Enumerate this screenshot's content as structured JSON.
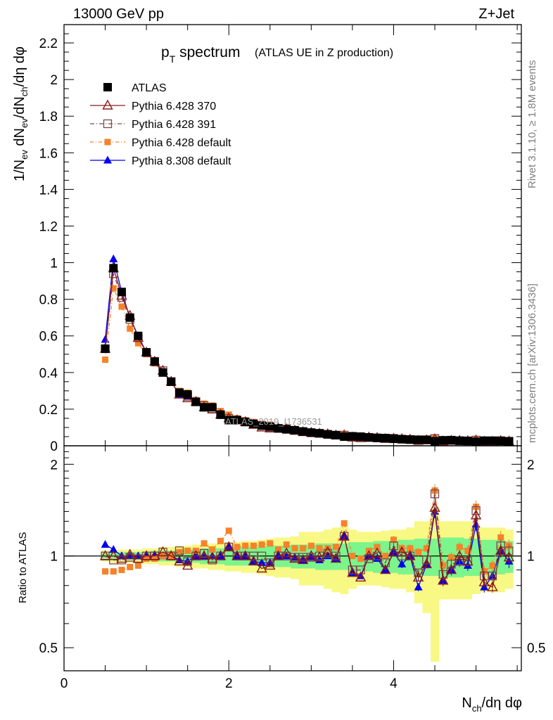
{
  "header": {
    "left": "13000 GeV pp",
    "right": "Z+Jet"
  },
  "title": {
    "main": "p",
    "sub": "T",
    "rest": " spectrum",
    "paren": "(ATLAS UE in Z production)"
  },
  "side_labels": {
    "rivet": "Rivet 3.1.10, ≥ 1.8M events",
    "mcplots": "mcplots.cern.ch [arXiv:1306.3436]"
  },
  "watermark": "ATLAS_2019_I1736531",
  "colors": {
    "atlas": "#000000",
    "p370": "#8b1a1a",
    "p391": "#7a4a4a",
    "p6def": "#f5822a",
    "p8def": "#0000ee",
    "band_inner": "#7cf58c",
    "band_outer": "#f8f884"
  },
  "chart_data": [
    {
      "type": "scatter",
      "panel": "main",
      "ylabel": "1/N_ev dN_ev/dN_ch/dη dφ",
      "ylim": [
        0,
        2.3
      ],
      "xlim": [
        0,
        5.55
      ],
      "yticks": [
        "0",
        "0.2",
        "0.4",
        "0.6",
        "0.8",
        "1",
        "1.2",
        "1.4",
        "1.6",
        "1.8",
        "2",
        "2.2"
      ],
      "legend": [
        "ATLAS",
        "Pythia 6.428 370",
        "Pythia 6.428 391",
        "Pythia 6.428 default",
        "Pythia 8.308 default"
      ],
      "legend_position": "top-left",
      "x": [
        0.5,
        0.6,
        0.7,
        0.8,
        0.9,
        1.0,
        1.1,
        1.2,
        1.3,
        1.4,
        1.5,
        1.6,
        1.7,
        1.8,
        1.9,
        2.0,
        2.1,
        2.2,
        2.3,
        2.4,
        2.5,
        2.6,
        2.7,
        2.8,
        2.9,
        3.0,
        3.1,
        3.2,
        3.3,
        3.4,
        3.5,
        3.6,
        3.7,
        3.8,
        3.9,
        4.0,
        4.1,
        4.2,
        4.3,
        4.4,
        4.5,
        4.6,
        4.7,
        4.8,
        4.9,
        5.0,
        5.1,
        5.2,
        5.3,
        5.4
      ],
      "series": [
        {
          "name": "ATLAS",
          "values": [
            0.53,
            0.97,
            0.84,
            0.7,
            0.6,
            0.51,
            0.46,
            0.4,
            0.35,
            0.29,
            0.28,
            0.24,
            0.21,
            0.21,
            0.17,
            0.14,
            0.14,
            0.13,
            0.12,
            0.11,
            0.105,
            0.095,
            0.09,
            0.085,
            0.078,
            0.072,
            0.068,
            0.062,
            0.058,
            0.05,
            0.052,
            0.05,
            0.046,
            0.043,
            0.042,
            0.038,
            0.036,
            0.034,
            0.033,
            0.033,
            0.025,
            0.03,
            0.031,
            0.028,
            0.027,
            0.022,
            0.028,
            0.028,
            0.026,
            0.024
          ]
        },
        {
          "name": "Pythia 6.428 370",
          "values": [
            0.53,
            0.97,
            0.82,
            0.71,
            0.59,
            0.51,
            0.46,
            0.41,
            0.35,
            0.28,
            0.26,
            0.24,
            0.21,
            0.2,
            0.17,
            0.15,
            0.14,
            0.13,
            0.115,
            0.1,
            0.095,
            0.095,
            0.092,
            0.083,
            0.075,
            0.072,
            0.067,
            0.064,
            0.057,
            0.058,
            0.046,
            0.042,
            0.046,
            0.044,
            0.038,
            0.039,
            0.037,
            0.034,
            0.028,
            0.031,
            0.036,
            0.025,
            0.028,
            0.028,
            0.026,
            0.03,
            0.023,
            0.022,
            0.027,
            0.024
          ]
        },
        {
          "name": "Pythia 6.428 391",
          "values": [
            0.53,
            0.94,
            0.81,
            0.69,
            0.59,
            0.51,
            0.46,
            0.41,
            0.35,
            0.29,
            0.27,
            0.24,
            0.22,
            0.2,
            0.17,
            0.15,
            0.14,
            0.13,
            0.12,
            0.11,
            0.1,
            0.095,
            0.09,
            0.084,
            0.077,
            0.071,
            0.068,
            0.063,
            0.058,
            0.058,
            0.047,
            0.045,
            0.045,
            0.043,
            0.04,
            0.041,
            0.036,
            0.034,
            0.029,
            0.032,
            0.04,
            0.026,
            0.029,
            0.027,
            0.026,
            0.031,
            0.024,
            0.024,
            0.028,
            0.025
          ]
        },
        {
          "name": "Pythia 6.428 default",
          "values": [
            0.47,
            0.86,
            0.76,
            0.64,
            0.56,
            0.5,
            0.45,
            0.4,
            0.35,
            0.3,
            0.29,
            0.25,
            0.23,
            0.22,
            0.19,
            0.17,
            0.15,
            0.14,
            0.13,
            0.12,
            0.115,
            0.1,
            0.098,
            0.09,
            0.083,
            0.078,
            0.072,
            0.066,
            0.062,
            0.064,
            0.052,
            0.049,
            0.048,
            0.046,
            0.042,
            0.043,
            0.038,
            0.036,
            0.034,
            0.035,
            0.041,
            0.028,
            0.031,
            0.03,
            0.028,
            0.032,
            0.025,
            0.026,
            0.03,
            0.026
          ]
        },
        {
          "name": "Pythia 8.308 default",
          "values": [
            0.58,
            1.02,
            0.84,
            0.7,
            0.6,
            0.51,
            0.46,
            0.4,
            0.35,
            0.28,
            0.27,
            0.24,
            0.21,
            0.21,
            0.17,
            0.15,
            0.14,
            0.13,
            0.115,
            0.105,
            0.1,
            0.095,
            0.09,
            0.084,
            0.076,
            0.071,
            0.066,
            0.062,
            0.057,
            0.058,
            0.046,
            0.043,
            0.046,
            0.042,
            0.038,
            0.039,
            0.034,
            0.034,
            0.026,
            0.031,
            0.035,
            0.025,
            0.028,
            0.027,
            0.025,
            0.028,
            0.022,
            0.024,
            0.027,
            0.023
          ]
        }
      ]
    },
    {
      "type": "scatter",
      "panel": "ratio",
      "ylabel": "Ratio to ATLAS",
      "xlabel": "N_ch/dη dφ",
      "ylim": [
        0.42,
        2.3
      ],
      "yscale": "log",
      "xlim": [
        0,
        5.55
      ],
      "yticks": [
        "0.5",
        "1",
        "2"
      ],
      "xticks": [
        "0",
        "2",
        "4"
      ],
      "x": [
        0.5,
        0.6,
        0.7,
        0.8,
        0.9,
        1.0,
        1.1,
        1.2,
        1.3,
        1.4,
        1.5,
        1.6,
        1.7,
        1.8,
        1.9,
        2.0,
        2.1,
        2.2,
        2.3,
        2.4,
        2.5,
        2.6,
        2.7,
        2.8,
        2.9,
        3.0,
        3.1,
        3.2,
        3.3,
        3.4,
        3.5,
        3.6,
        3.7,
        3.8,
        3.9,
        4.0,
        4.1,
        4.2,
        4.3,
        4.4,
        4.5,
        4.6,
        4.7,
        4.8,
        4.9,
        5.0,
        5.1,
        5.2,
        5.3,
        5.4
      ],
      "band_inner": [
        [
          0.98,
          1.02
        ],
        [
          0.97,
          1.03
        ],
        [
          0.97,
          1.03
        ],
        [
          0.97,
          1.03
        ],
        [
          0.97,
          1.03
        ],
        [
          0.97,
          1.03
        ],
        [
          0.96,
          1.04
        ],
        [
          0.96,
          1.04
        ],
        [
          0.96,
          1.04
        ],
        [
          0.95,
          1.05
        ],
        [
          0.95,
          1.05
        ],
        [
          0.95,
          1.05
        ],
        [
          0.94,
          1.06
        ],
        [
          0.94,
          1.06
        ],
        [
          0.94,
          1.06
        ],
        [
          0.93,
          1.07
        ],
        [
          0.93,
          1.07
        ],
        [
          0.93,
          1.07
        ],
        [
          0.93,
          1.07
        ],
        [
          0.92,
          1.08
        ],
        [
          0.92,
          1.08
        ],
        [
          0.92,
          1.08
        ],
        [
          0.92,
          1.08
        ],
        [
          0.91,
          1.09
        ],
        [
          0.91,
          1.09
        ],
        [
          0.91,
          1.09
        ],
        [
          0.9,
          1.1
        ],
        [
          0.9,
          1.1
        ],
        [
          0.9,
          1.1
        ],
        [
          0.9,
          1.1
        ],
        [
          0.89,
          1.11
        ],
        [
          0.89,
          1.11
        ],
        [
          0.89,
          1.11
        ],
        [
          0.88,
          1.12
        ],
        [
          0.88,
          1.12
        ],
        [
          0.88,
          1.12
        ],
        [
          0.87,
          1.13
        ],
        [
          0.87,
          1.13
        ],
        [
          0.86,
          1.14
        ],
        [
          0.86,
          1.14
        ],
        [
          0.86,
          1.14
        ],
        [
          0.85,
          1.15
        ],
        [
          0.85,
          1.15
        ],
        [
          0.85,
          1.15
        ],
        [
          0.86,
          1.14
        ],
        [
          0.86,
          1.14
        ],
        [
          0.87,
          1.13
        ],
        [
          0.87,
          1.13
        ],
        [
          0.87,
          1.13
        ],
        [
          0.88,
          1.12
        ]
      ],
      "band_outer": [
        [
          0.96,
          1.04
        ],
        [
          0.95,
          1.05
        ],
        [
          0.95,
          1.05
        ],
        [
          0.95,
          1.05
        ],
        [
          0.95,
          1.05
        ],
        [
          0.94,
          1.06
        ],
        [
          0.94,
          1.06
        ],
        [
          0.93,
          1.07
        ],
        [
          0.93,
          1.07
        ],
        [
          0.92,
          1.08
        ],
        [
          0.92,
          1.08
        ],
        [
          0.91,
          1.09
        ],
        [
          0.91,
          1.09
        ],
        [
          0.9,
          1.1
        ],
        [
          0.9,
          1.1
        ],
        [
          0.89,
          1.11
        ],
        [
          0.89,
          1.11
        ],
        [
          0.88,
          1.12
        ],
        [
          0.88,
          1.12
        ],
        [
          0.87,
          1.13
        ],
        [
          0.86,
          1.14
        ],
        [
          0.85,
          1.15
        ],
        [
          0.85,
          1.15
        ],
        [
          0.84,
          1.16
        ],
        [
          0.8,
          1.2
        ],
        [
          0.8,
          1.2
        ],
        [
          0.8,
          1.2
        ],
        [
          0.78,
          1.22
        ],
        [
          0.76,
          1.24
        ],
        [
          0.75,
          1.25
        ],
        [
          0.78,
          1.22
        ],
        [
          0.8,
          1.2
        ],
        [
          0.8,
          1.2
        ],
        [
          0.8,
          1.2
        ],
        [
          0.79,
          1.21
        ],
        [
          0.78,
          1.22
        ],
        [
          0.78,
          1.22
        ],
        [
          0.76,
          1.24
        ],
        [
          0.7,
          1.3
        ],
        [
          0.65,
          1.3
        ],
        [
          0.45,
          1.45
        ],
        [
          0.72,
          1.3
        ],
        [
          0.72,
          1.3
        ],
        [
          0.72,
          1.3
        ],
        [
          0.72,
          1.3
        ],
        [
          0.75,
          1.25
        ],
        [
          0.76,
          1.24
        ],
        [
          0.76,
          1.24
        ],
        [
          0.76,
          1.24
        ],
        [
          0.78,
          1.22
        ]
      ],
      "series": [
        {
          "name": "Pythia 6.428 370",
          "values": [
            1.0,
            1.0,
            0.98,
            1.01,
            0.98,
            1.0,
            1.0,
            1.03,
            1.0,
            0.96,
            0.93,
            1.0,
            1.0,
            0.98,
            1.0,
            1.07,
            1.0,
            1.0,
            0.96,
            0.91,
            0.93,
            1.0,
            1.02,
            0.98,
            0.97,
            1.0,
            0.99,
            1.03,
            0.98,
            1.16,
            0.88,
            0.85,
            1.0,
            1.02,
            0.9,
            1.03,
            1.03,
            1.0,
            0.85,
            0.94,
            1.44,
            0.83,
            0.9,
            1.0,
            0.96,
            1.36,
            0.82,
            0.79,
            1.04,
            0.99
          ]
        },
        {
          "name": "Pythia 6.428 391",
          "values": [
            1.0,
            0.97,
            0.97,
            0.99,
            0.98,
            1.0,
            1.0,
            1.03,
            1.0,
            1.04,
            0.96,
            1.0,
            1.02,
            0.97,
            1.0,
            1.07,
            1.0,
            1.0,
            1.0,
            1.0,
            0.95,
            1.0,
            1.0,
            0.99,
            0.99,
            0.99,
            1.0,
            1.02,
            1.0,
            1.16,
            0.9,
            0.9,
            0.98,
            1.0,
            0.95,
            1.08,
            1.0,
            1.0,
            0.88,
            0.97,
            1.6,
            0.87,
            0.94,
            0.96,
            0.96,
            1.41,
            0.86,
            0.86,
            1.08,
            1.04
          ]
        },
        {
          "name": "Pythia 6.428 default",
          "values": [
            0.89,
            0.89,
            0.9,
            0.92,
            0.93,
            0.98,
            0.98,
            1.0,
            1.0,
            1.03,
            1.04,
            1.04,
            1.1,
            1.05,
            1.12,
            1.21,
            1.07,
            1.08,
            1.08,
            1.09,
            1.1,
            1.05,
            1.09,
            1.06,
            1.06,
            1.08,
            1.06,
            1.06,
            1.07,
            1.28,
            1.0,
            0.98,
            1.04,
            1.07,
            1.0,
            1.13,
            1.06,
            1.06,
            1.03,
            1.06,
            1.64,
            0.93,
            0.99,
            1.07,
            1.04,
            1.45,
            0.89,
            0.93,
            1.15,
            1.08
          ]
        },
        {
          "name": "Pythia 8.308 default",
          "values": [
            1.09,
            1.05,
            1.0,
            1.0,
            1.0,
            1.0,
            1.0,
            1.0,
            1.0,
            0.97,
            0.96,
            1.0,
            1.0,
            1.0,
            1.0,
            1.07,
            1.0,
            1.0,
            0.96,
            0.95,
            0.95,
            1.0,
            1.0,
            0.99,
            0.97,
            0.99,
            0.97,
            1.0,
            0.98,
            1.16,
            0.88,
            0.86,
            1.0,
            0.98,
            0.9,
            1.03,
            0.94,
            1.0,
            0.79,
            0.94,
            1.4,
            0.83,
            0.9,
            0.96,
            0.93,
            1.27,
            0.79,
            0.86,
            1.04,
            0.96
          ]
        }
      ],
      "data_errors": [
        0.0,
        0.0,
        0.0,
        0.0,
        0.0,
        0.0,
        0.0,
        0.0,
        0.0,
        0.0,
        0.0,
        0.0,
        0.0,
        0.0,
        0.0,
        0.0,
        0.0,
        0.0,
        0.0,
        0.0,
        0.0,
        0.0,
        0.0,
        0.0,
        0.0,
        0.0,
        0.0,
        0.0,
        0.0,
        0.0,
        0.0,
        0.0,
        0.0,
        0.0,
        0.0,
        0.03,
        0.03,
        0.03,
        0.03,
        0.03,
        0.05,
        0.04,
        0.04,
        0.04,
        0.04,
        0.05,
        0.04,
        0.04,
        0.05,
        0.05
      ]
    }
  ]
}
